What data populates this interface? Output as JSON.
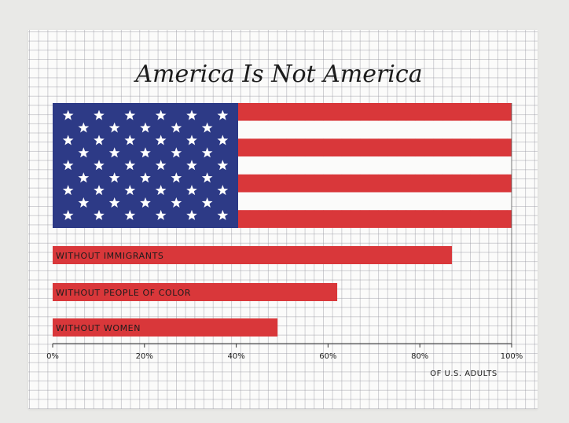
{
  "chart_data": {
    "type": "bar",
    "title": "America Is Not America",
    "categories": [
      "WITHOUT IMMIGRANTS",
      "WITHOUT PEOPLE OF COLOR",
      "WITHOUT WOMEN"
    ],
    "values": [
      87,
      62,
      49
    ],
    "xlim": [
      0,
      100
    ],
    "x_ticks": [
      "0%",
      "20%",
      "40%",
      "60%",
      "80%",
      "100%"
    ],
    "xlabel": "OF U.S. ADULTS",
    "grid": true,
    "colors": {
      "bar": "#d9373a",
      "stripe_red": "#d9373a",
      "canton": "#2d3a86",
      "star": "#ffffff",
      "ink": "#1c1c1c"
    }
  }
}
